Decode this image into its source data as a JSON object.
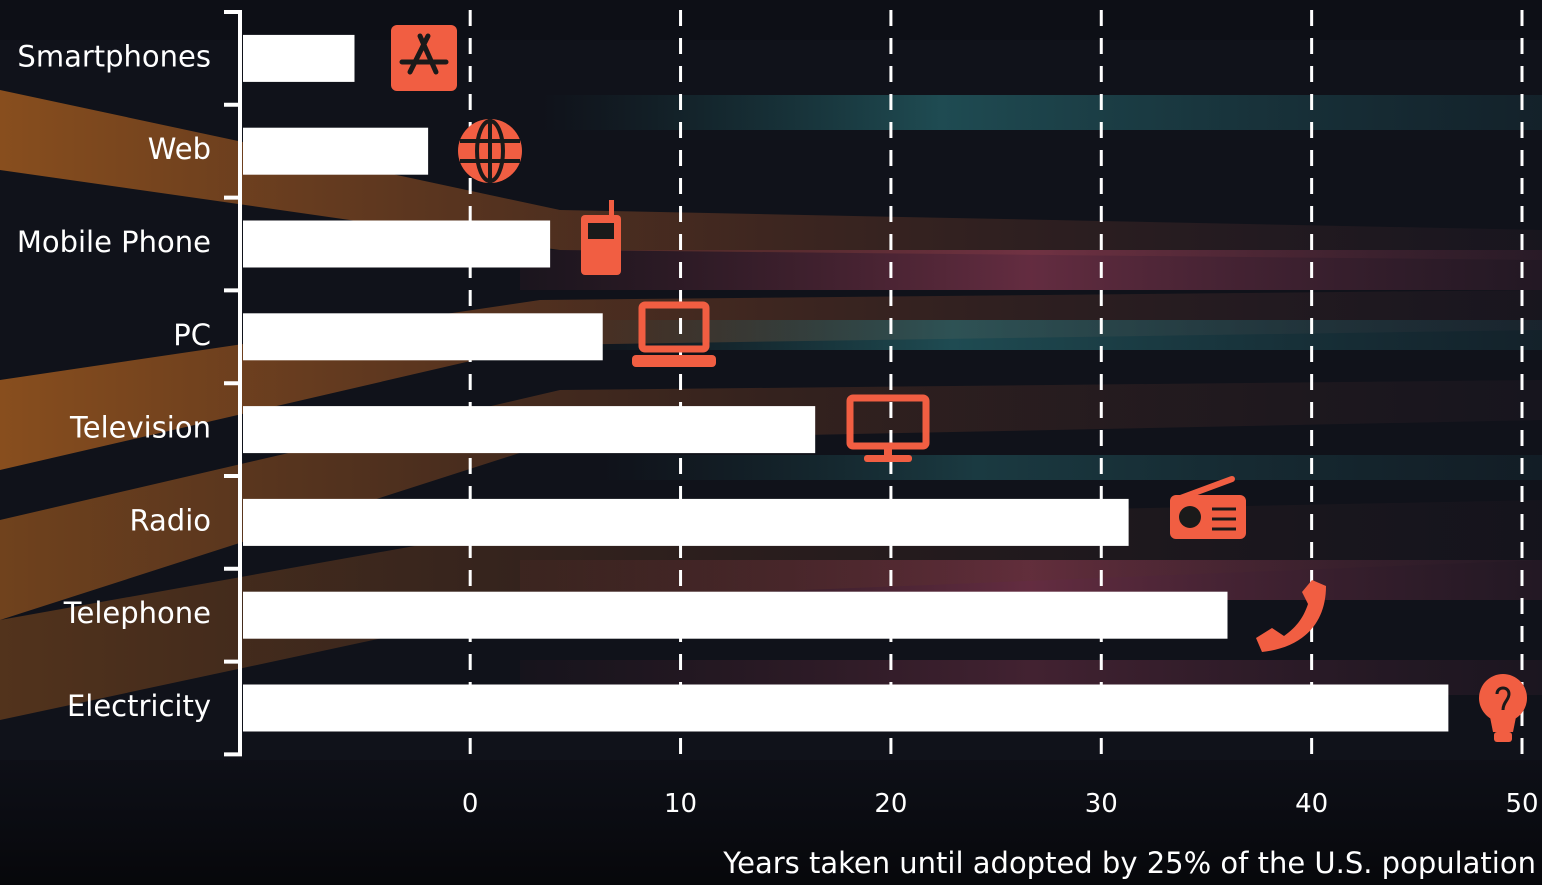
{
  "chart_data": {
    "type": "bar",
    "orientation": "horizontal",
    "categories": [
      "Smartphones",
      "Web",
      "Mobile Phone",
      "PC",
      "Television",
      "Radio",
      "Telephone",
      "Electricity"
    ],
    "values": [
      -5.5,
      -2,
      3.8,
      6.3,
      16.4,
      31.3,
      36,
      46.5
    ],
    "icons": [
      "app-store-icon",
      "globe-icon",
      "mobile-phone-icon",
      "laptop-icon",
      "television-icon",
      "radio-icon",
      "telephone-icon",
      "lightbulb-icon"
    ],
    "x_ticks": [
      0,
      10,
      20,
      30,
      40,
      50
    ],
    "xlim": [
      -10.8,
      50
    ],
    "xlabel": "Years taken until adopted by 25% of the U.S. population",
    "ylabel": "",
    "title": "",
    "grid": "vertical dashed",
    "legend": "none"
  },
  "colors": {
    "bar": "#ffffff",
    "icon": "#f15e42",
    "text": "#ffffff",
    "grid": "#ffffff",
    "background": "#0e0f16"
  }
}
